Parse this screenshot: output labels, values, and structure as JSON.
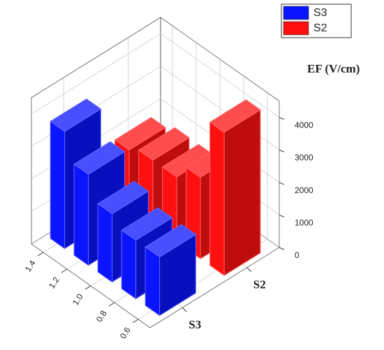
{
  "chart_data": {
    "type": "bar3d",
    "categories": [
      "1.4",
      "1.2",
      "1.0",
      "0.8",
      "0.6"
    ],
    "series": [
      {
        "name": "S3",
        "color": "#0a14ff",
        "values": [
          3600,
          2800,
          2100,
          1800,
          1800
        ]
      },
      {
        "name": "S2",
        "color": "#ff1010",
        "values": [
          1800,
          2000,
          2000,
          2500,
          4400
        ]
      }
    ],
    "zlabel": "EF (V/cm)",
    "zlim": [
      0,
      4500
    ],
    "zticks": [
      0,
      1000,
      2000,
      3000,
      4000
    ],
    "grid": true,
    "legend": "upper right"
  }
}
